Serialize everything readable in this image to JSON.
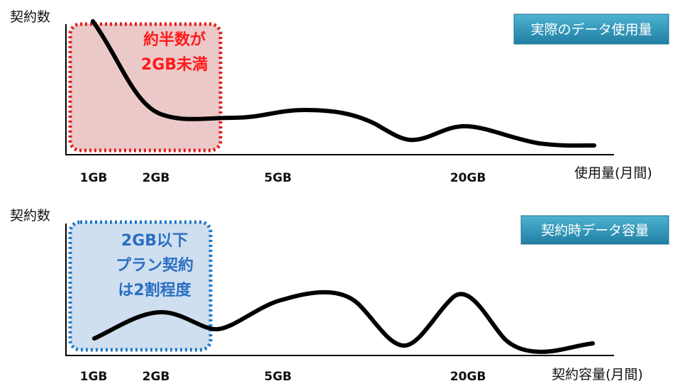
{
  "chart_data": [
    {
      "type": "line",
      "title": "実際のデータ使用量",
      "ylabel": "契約数",
      "xlabel": "使用量(月間)",
      "tick_labels": [
        "1GB",
        "2GB",
        "5GB",
        "20GB"
      ],
      "grid": false,
      "legend": "none",
      "curve_color": "#000000",
      "highlight": {
        "lines": [
          "約半数が",
          "2GB未満"
        ],
        "text_color": "#ff1a1a",
        "border_color": "#e31b1b",
        "fill_color": "#ecc9c9"
      },
      "badge_color": "#2b8fb0"
    },
    {
      "type": "line",
      "title": "契約時データ容量",
      "ylabel": "契約数",
      "xlabel": "契約容量(月間)",
      "tick_labels": [
        "1GB",
        "2GB",
        "5GB",
        "20GB"
      ],
      "grid": false,
      "legend": "none",
      "curve_color": "#000000",
      "highlight": {
        "lines": [
          "2GB以下",
          "プラン契約",
          "は2割程度"
        ],
        "text_color": "#2a6fc0",
        "border_color": "#1f78c8",
        "fill_color": "#cfdff0"
      },
      "badge_color": "#2b8fb0"
    }
  ]
}
